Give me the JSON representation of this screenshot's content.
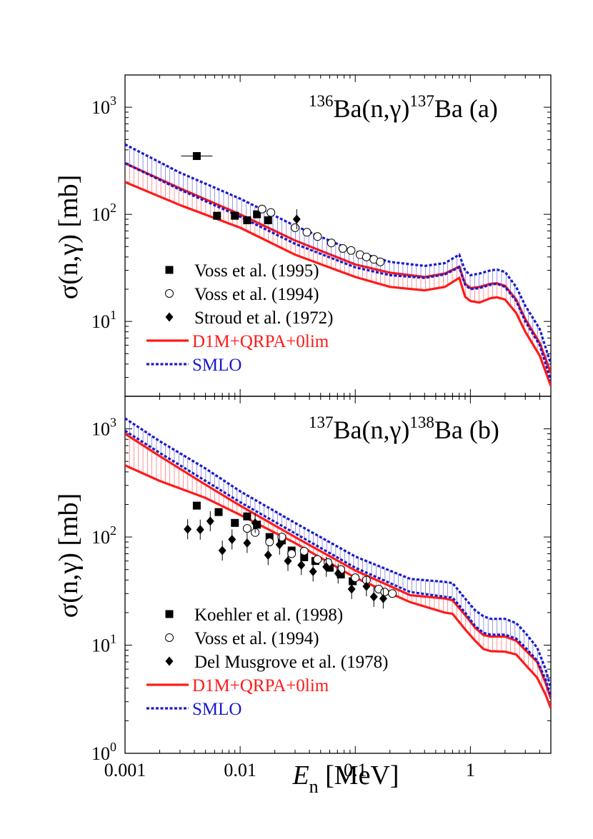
{
  "figure": {
    "xlabel_main": "E",
    "xlabel_sub": "n",
    "xlabel_unit": " [MeV]",
    "ylabel": "σ(n,γ) [mb]"
  },
  "chart_data": [
    {
      "type": "line",
      "panel": "a",
      "title_parts": [
        "136",
        "Ba(n,γ)",
        "137",
        "Ba",
        " (a)"
      ],
      "xscale": "log",
      "yscale": "log",
      "xlim": [
        0.001,
        5
      ],
      "ylim": [
        2,
        2000
      ],
      "x_ticks": [
        "0.001",
        "0.01",
        "0.1",
        "1"
      ],
      "y_ticks": [
        "10^1",
        "10^2",
        "10^3"
      ],
      "legend_position": "lower-left",
      "colors": {
        "red": "#ff1a1a",
        "blue": "#1a1acc",
        "black": "#000000"
      },
      "series": [
        {
          "name": "Voss et al. (1995)",
          "kind": "points",
          "marker": "square",
          "points": [
            [
              0.0042,
              350
            ],
            [
              0.0063,
              97
            ],
            [
              0.009,
              97
            ],
            [
              0.0115,
              88
            ],
            [
              0.014,
              100
            ],
            [
              0.0175,
              88
            ]
          ]
        },
        {
          "name": "Voss et al. (1994)",
          "kind": "points",
          "marker": "circle",
          "points": [
            [
              0.0155,
              112
            ],
            [
              0.0185,
              104
            ],
            [
              0.03,
              75
            ],
            [
              0.038,
              68
            ],
            [
              0.047,
              62
            ],
            [
              0.062,
              54
            ],
            [
              0.078,
              48
            ],
            [
              0.092,
              46
            ],
            [
              0.11,
              42
            ],
            [
              0.125,
              40
            ],
            [
              0.145,
              38
            ],
            [
              0.165,
              36
            ]
          ]
        },
        {
          "name": "Stroud et al. (1972)",
          "kind": "points",
          "marker": "diamond",
          "points": [
            [
              0.031,
              90
            ]
          ]
        },
        {
          "name": "D1M+QRPA+0lim",
          "kind": "band",
          "color": "red",
          "x": [
            0.001,
            0.003,
            0.01,
            0.03,
            0.1,
            0.2,
            0.4,
            0.6,
            0.8,
            0.9,
            1.0,
            1.2,
            1.5,
            1.7,
            2.0,
            2.5,
            3.0,
            4.0,
            5.0
          ],
          "lower": [
            200,
            122,
            75,
            42,
            26,
            21,
            19.5,
            21,
            25.5,
            17,
            15.5,
            15,
            16.5,
            16.8,
            16,
            12,
            8,
            4.8,
            2.5
          ],
          "upper": [
            300,
            175,
            100,
            57,
            34,
            28.5,
            26,
            28,
            32.5,
            22.5,
            20.5,
            21,
            22.5,
            22.7,
            21.5,
            16,
            10.5,
            6.3,
            3.3
          ]
        },
        {
          "name": "SMLO",
          "kind": "band",
          "color": "blue",
          "x": [
            0.001,
            0.003,
            0.01,
            0.03,
            0.1,
            0.2,
            0.4,
            0.6,
            0.8,
            0.9,
            1.0,
            1.2,
            1.5,
            1.7,
            2.0,
            2.5,
            3.0,
            4.0,
            5.0
          ],
          "lower": [
            300,
            170,
            95,
            53,
            32,
            27,
            25.5,
            27.5,
            32,
            22,
            20,
            20.5,
            22,
            22.5,
            21,
            15.5,
            10,
            6,
            2.8
          ],
          "upper": [
            450,
            245,
            140,
            78,
            45,
            36,
            33,
            35,
            42,
            30,
            27,
            28,
            30,
            30.5,
            29,
            21,
            14,
            8.5,
            4
          ]
        }
      ]
    },
    {
      "type": "line",
      "panel": "b",
      "title_parts": [
        "137",
        "Ba(n,γ)",
        "138",
        "Ba",
        " (b)"
      ],
      "xscale": "log",
      "yscale": "log",
      "xlim": [
        0.001,
        5
      ],
      "ylim": [
        1,
        2000
      ],
      "x_ticks": [
        "0.001",
        "0.01",
        "0.1",
        "1"
      ],
      "y_ticks": [
        "10^0",
        "10^1",
        "10^2",
        "10^3"
      ],
      "legend_position": "lower-left",
      "colors": {
        "red": "#ff1a1a",
        "blue": "#1a1acc",
        "black": "#000000"
      },
      "series": [
        {
          "name": "Koehler et al. (1998)",
          "kind": "points",
          "marker": "square",
          "points": [
            [
              0.0042,
              195
            ],
            [
              0.0065,
              170
            ],
            [
              0.009,
              135
            ],
            [
              0.0115,
              155
            ],
            [
              0.014,
              130
            ],
            [
              0.018,
              100
            ],
            [
              0.023,
              93
            ],
            [
              0.028,
              75
            ],
            [
              0.036,
              65
            ],
            [
              0.045,
              60
            ],
            [
              0.06,
              52
            ],
            [
              0.075,
              45
            ],
            [
              0.095,
              39
            ]
          ]
        },
        {
          "name": "Voss et al. (1994)",
          "kind": "points",
          "marker": "circle",
          "points": [
            [
              0.0115,
              120
            ],
            [
              0.0135,
              110
            ],
            [
              0.018,
              90
            ],
            [
              0.023,
              100
            ],
            [
              0.028,
              70
            ],
            [
              0.036,
              74
            ],
            [
              0.047,
              62
            ],
            [
              0.058,
              58
            ],
            [
              0.075,
              50
            ],
            [
              0.1,
              42
            ],
            [
              0.125,
              40
            ],
            [
              0.16,
              33
            ],
            [
              0.18,
              31
            ],
            [
              0.21,
              30
            ]
          ]
        },
        {
          "name": "Del Musgrove et al. (1978)",
          "kind": "points",
          "marker": "diamond",
          "points": [
            [
              0.0035,
              118
            ],
            [
              0.0045,
              117
            ],
            [
              0.0055,
              140
            ],
            [
              0.007,
              75
            ],
            [
              0.0085,
              95
            ],
            [
              0.0115,
              88
            ],
            [
              0.0135,
              135
            ],
            [
              0.0175,
              68
            ],
            [
              0.022,
              85
            ],
            [
              0.026,
              60
            ],
            [
              0.034,
              55
            ],
            [
              0.043,
              48
            ],
            [
              0.056,
              53
            ],
            [
              0.071,
              46
            ],
            [
              0.093,
              33
            ],
            [
              0.125,
              35
            ],
            [
              0.145,
              28
            ],
            [
              0.175,
              27
            ]
          ]
        },
        {
          "name": "D1M+QRPA+0lim",
          "kind": "band",
          "color": "red",
          "x": [
            0.001,
            0.002,
            0.005,
            0.01,
            0.03,
            0.1,
            0.3,
            0.6,
            0.7,
            0.9,
            1.1,
            1.3,
            1.5,
            2.0,
            2.5,
            3.0,
            3.8,
            4.5,
            5.0
          ],
          "lower": [
            460,
            330,
            230,
            160,
            88,
            42,
            25,
            20,
            19.5,
            14,
            11,
            9.2,
            8.8,
            8.7,
            8.2,
            6.6,
            5,
            3.5,
            2.6
          ],
          "upper": [
            900,
            560,
            305,
            195,
            100,
            49,
            29,
            27,
            26,
            19,
            14.5,
            12.4,
            12,
            12,
            11,
            9,
            7,
            4.5,
            3.2
          ]
        },
        {
          "name": "SMLO",
          "kind": "band",
          "color": "blue",
          "x": [
            0.001,
            0.002,
            0.005,
            0.01,
            0.03,
            0.1,
            0.3,
            0.6,
            0.7,
            0.9,
            1.1,
            1.3,
            1.5,
            2.0,
            2.5,
            3.0,
            3.8,
            4.5,
            5.0
          ],
          "lower": [
            960,
            600,
            330,
            210,
            108,
            52,
            31,
            28,
            27.5,
            20,
            15,
            13,
            12.5,
            12.5,
            11.5,
            9.5,
            7.2,
            4.8,
            3.3
          ],
          "upper": [
            1250,
            770,
            430,
            265,
            135,
            66,
            41,
            38.5,
            37.5,
            27,
            21,
            18.5,
            17.5,
            17.5,
            16,
            13,
            9.5,
            6,
            4
          ]
        }
      ]
    }
  ]
}
